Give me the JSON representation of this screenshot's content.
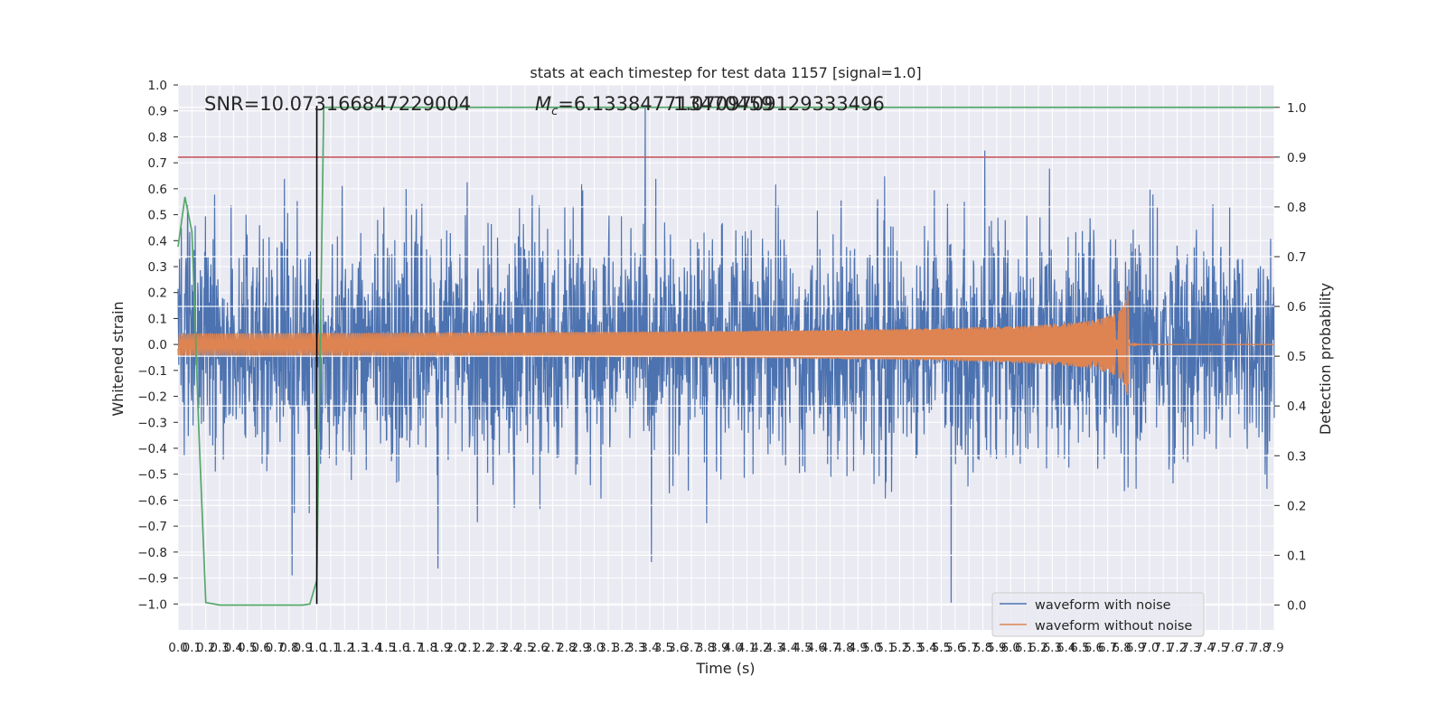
{
  "chart_data": {
    "type": "line",
    "title": "stats at each timestep for test data 1157 [signal=1.0]",
    "xlabel": "Time (s)",
    "ylabel": "Whitened strain",
    "y2label": "Detection probability",
    "xlim": [
      0.0,
      7.9
    ],
    "ylim": [
      -1.1,
      1.0
    ],
    "y2lim": [
      -0.05,
      1.045
    ],
    "grid": true,
    "legend_position": "lower-right",
    "x_tick_labels": [
      "0.0",
      "0.1",
      "0.2",
      "0.3",
      "0.4",
      "0.5",
      "0.6",
      "0.7",
      "0.8",
      "0.9",
      "1.0",
      "1.1",
      "1.2",
      "1.3",
      "1.4",
      "1.5",
      "1.6",
      "1.7",
      "1.8",
      "1.9",
      "2.0",
      "2.1",
      "2.2",
      "2.3",
      "2.4",
      "2.5",
      "2.6",
      "2.7",
      "2.8",
      "2.9",
      "3.0",
      "3.1",
      "3.2",
      "3.3",
      "3.4",
      "3.5",
      "3.6",
      "3.7",
      "3.8",
      "3.9",
      "4.0",
      "4.1",
      "4.2",
      "4.3",
      "4.4",
      "4.5",
      "4.6",
      "4.7",
      "4.8",
      "4.9",
      "5.0",
      "5.1",
      "5.2",
      "5.3",
      "5.4",
      "5.5",
      "5.6",
      "5.7",
      "5.8",
      "5.9",
      "6.0",
      "6.1",
      "6.2",
      "6.3",
      "6.4",
      "6.5",
      "6.6",
      "6.7",
      "6.8",
      "6.9",
      "7.0",
      "7.1",
      "7.2",
      "7.3",
      "7.4",
      "7.5",
      "7.6",
      "7.7",
      "7.8",
      "7.9"
    ],
    "y_tick_labels": [
      "1.0",
      "0.9",
      "0.8",
      "0.7",
      "0.6",
      "0.5",
      "0.4",
      "0.3",
      "0.2",
      "0.1",
      "0.0",
      "−0.1",
      "−0.2",
      "−0.3",
      "−0.4",
      "−0.5",
      "−0.6",
      "−0.7",
      "−0.8",
      "−0.9",
      "−1.0"
    ],
    "y2_tick_labels": [
      "1.0",
      "0.9",
      "0.8",
      "0.7",
      "0.6",
      "0.5",
      "0.4",
      "0.3",
      "0.2",
      "0.1",
      "0.0"
    ],
    "annotations": {
      "snr": "SNR=10.073166847229004",
      "mc_prefix": "M",
      "mc_sub": "c",
      "mc_value": "=6.133847713470459",
      "overlap": "1.0709709129333496"
    },
    "threshold_y2": 0.9,
    "vertical_marker_x": 1.0,
    "merger_time": 6.85,
    "series": [
      {
        "name": "waveform with noise",
        "color": "#4c72b0",
        "peak_amplitude": 0.92
      },
      {
        "name": "waveform without noise",
        "color": "#dd8452",
        "peak_amplitude": 0.27
      }
    ],
    "detection_probability": {
      "color": "#55a868",
      "x": [
        0.0,
        0.05,
        0.1,
        0.15,
        0.2,
        0.3,
        0.9,
        0.95,
        1.0,
        1.05,
        7.9
      ],
      "y": [
        0.72,
        0.82,
        0.75,
        0.35,
        0.005,
        0.0,
        0.0,
        0.002,
        0.05,
        1.0,
        1.0
      ]
    },
    "threshold_color": "#c44e52",
    "marker_color": "#000000"
  }
}
